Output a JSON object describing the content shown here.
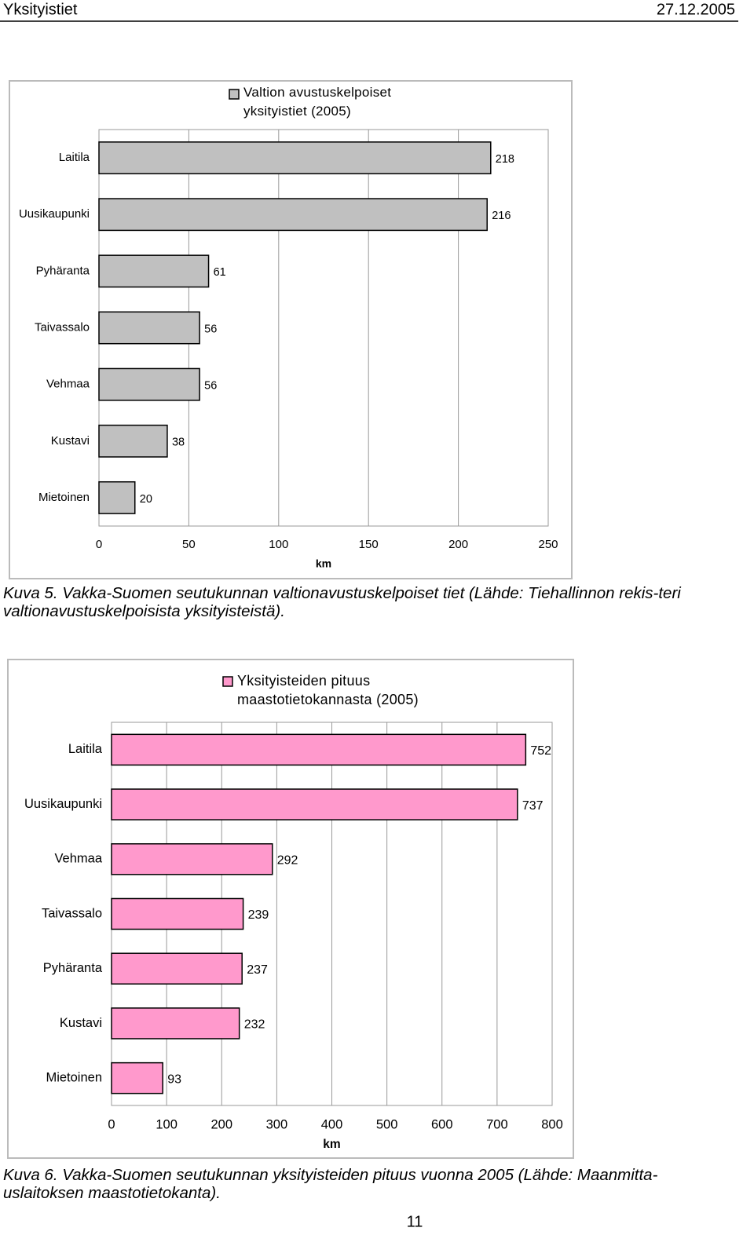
{
  "header": {
    "left": "Yksityistiet",
    "right": "27.12.2005"
  },
  "chart_data": [
    {
      "type": "bar",
      "orientation": "horizontal",
      "categories": [
        "Laitila",
        "Uusikaupunki",
        "Pyhäranta",
        "Taivassalo",
        "Vehmaa",
        "Kustavi",
        "Mietoinen"
      ],
      "series": [
        {
          "name": "Valtion avustuskelpoiset yksityistiet (2005)",
          "color": "#c0c0c0",
          "values": [
            218,
            216,
            61,
            56,
            56,
            38,
            20
          ]
        }
      ],
      "xlabel": "km",
      "xlim": [
        0,
        250
      ],
      "xticks": [
        0,
        50,
        100,
        150,
        200,
        250
      ],
      "grid": true,
      "legend": "top"
    },
    {
      "type": "bar",
      "orientation": "horizontal",
      "categories": [
        "Laitila",
        "Uusikaupunki",
        "Vehmaa",
        "Taivassalo",
        "Pyhäranta",
        "Kustavi",
        "Mietoinen"
      ],
      "series": [
        {
          "name": "Yksityisteiden pituus maastotietokannasta (2005)",
          "color": "#ff99cc",
          "values": [
            752,
            737,
            292,
            239,
            237,
            232,
            93
          ]
        }
      ],
      "xlabel": "km",
      "xlim": [
        0,
        800
      ],
      "xticks": [
        0,
        100,
        200,
        300,
        400,
        500,
        600,
        700,
        800
      ],
      "grid": true,
      "legend": "top"
    }
  ],
  "captions": [
    "Kuva 5. Vakka-Suomen seutukunnan valtionavustuskelpoiset tiet (Lähde: Tiehallinnon rekis-teri valtionavustuskelpoisista yksityisteistä).",
    "Kuva 6. Vakka-Suomen seutukunnan yksityisteiden pituus vuonna 2005 (Lähde: Maanmitta-uslaitoksen maastotietokanta)."
  ],
  "page_number": "11"
}
